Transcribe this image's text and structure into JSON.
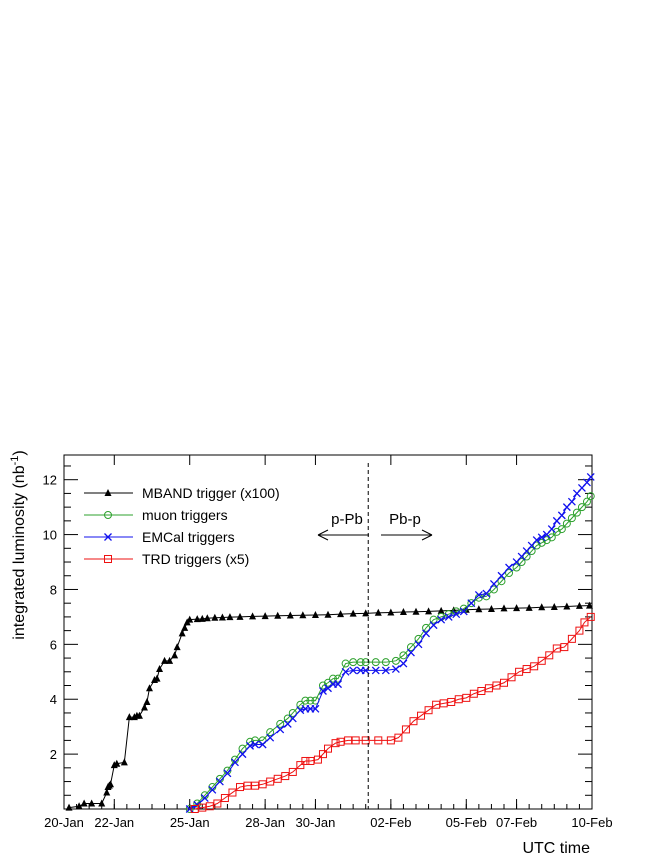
{
  "chart_data": {
    "type": "line",
    "xlabel": "UTC time",
    "ylabel_main": "integrated luminosity (nb",
    "ylabel_sup": "-1",
    "ylabel_close": ")",
    "xlim": [
      0,
      21
    ],
    "ylim": [
      0,
      12.9
    ],
    "x_ticks": [
      {
        "label": "20-Jan",
        "x": 0
      },
      {
        "label": "22-Jan",
        "x": 2
      },
      {
        "label": "25-Jan",
        "x": 5
      },
      {
        "label": "28-Jan",
        "x": 8
      },
      {
        "label": "30-Jan",
        "x": 10
      },
      {
        "label": "02-Feb",
        "x": 13
      },
      {
        "label": "05-Feb",
        "x": 16
      },
      {
        "label": "07-Feb",
        "x": 18
      },
      {
        "label": "10-Feb",
        "x": 21
      }
    ],
    "y_ticks": [
      2,
      4,
      6,
      8,
      10,
      12
    ],
    "grid": false,
    "legend_position": "top-left",
    "annotations": {
      "left_label": "p-Pb",
      "right_label": "Pb-p",
      "divider_x": 12.1
    },
    "series": [
      {
        "name": "MBAND trigger (x100)",
        "color": "#000000",
        "marker": "triangle",
        "x": [
          0.2,
          0.6,
          0.8,
          1.1,
          1.5,
          1.7,
          1.75,
          1.8,
          1.85,
          2.0,
          2.1,
          2.4,
          2.6,
          2.8,
          2.9,
          3.0,
          3.2,
          3.3,
          3.4,
          3.6,
          3.7,
          3.8,
          4.0,
          4.2,
          4.4,
          4.5,
          4.7,
          4.8,
          4.9,
          5.0,
          5.3,
          5.5,
          5.7,
          6.0,
          6.3,
          6.6,
          7.0,
          7.5,
          8.0,
          8.5,
          9.0,
          9.5,
          10.0,
          10.5,
          11.0,
          11.5,
          12.0,
          12.5,
          13.0,
          13.5,
          14.0,
          14.5,
          15.0,
          15.5,
          16.0,
          16.5,
          17.0,
          17.5,
          18.0,
          18.5,
          19.0,
          19.5,
          20.0,
          20.5,
          20.9
        ],
        "y": [
          0.05,
          0.1,
          0.2,
          0.2,
          0.2,
          0.6,
          0.8,
          0.85,
          0.9,
          1.6,
          1.65,
          1.7,
          3.35,
          3.35,
          3.4,
          3.4,
          3.7,
          3.9,
          4.4,
          4.7,
          4.75,
          5.1,
          5.4,
          5.4,
          5.6,
          5.9,
          6.4,
          6.6,
          6.8,
          6.9,
          6.92,
          6.93,
          6.95,
          6.97,
          6.98,
          6.99,
          7.0,
          7.02,
          7.03,
          7.04,
          7.05,
          7.06,
          7.07,
          7.08,
          7.1,
          7.12,
          7.13,
          7.15,
          7.16,
          7.18,
          7.19,
          7.2,
          7.22,
          7.24,
          7.26,
          7.28,
          7.29,
          7.31,
          7.32,
          7.33,
          7.35,
          7.36,
          7.38,
          7.4,
          7.41
        ]
      },
      {
        "name": "muon triggers",
        "color": "#2ca02c",
        "marker": "circle",
        "x": [
          5.0,
          5.3,
          5.6,
          5.9,
          6.2,
          6.5,
          6.8,
          7.1,
          7.4,
          7.6,
          7.9,
          8.2,
          8.6,
          8.9,
          9.1,
          9.4,
          9.6,
          9.8,
          10.0,
          10.3,
          10.5,
          10.7,
          10.9,
          11.2,
          11.5,
          11.8,
          12.0,
          12.4,
          12.8,
          13.2,
          13.5,
          13.8,
          14.1,
          14.4,
          14.7,
          15.0,
          15.3,
          15.6,
          15.9,
          16.2,
          16.5,
          16.8,
          17.1,
          17.4,
          17.7,
          18.0,
          18.2,
          18.4,
          18.6,
          18.8,
          19.0,
          19.2,
          19.4,
          19.6,
          19.8,
          20.0,
          20.2,
          20.4,
          20.6,
          20.8,
          20.95
        ],
        "y": [
          0.0,
          0.2,
          0.5,
          0.8,
          1.1,
          1.4,
          1.8,
          2.2,
          2.45,
          2.5,
          2.5,
          2.8,
          3.1,
          3.3,
          3.5,
          3.8,
          3.95,
          3.95,
          3.95,
          4.5,
          4.6,
          4.75,
          4.75,
          5.3,
          5.35,
          5.35,
          5.35,
          5.35,
          5.35,
          5.4,
          5.6,
          5.9,
          6.2,
          6.6,
          6.9,
          7.0,
          7.1,
          7.2,
          7.3,
          7.5,
          7.7,
          7.75,
          8.0,
          8.3,
          8.6,
          8.8,
          9.0,
          9.2,
          9.4,
          9.6,
          9.7,
          9.8,
          9.9,
          10.1,
          10.2,
          10.4,
          10.6,
          10.8,
          11.0,
          11.2,
          11.4
        ]
      },
      {
        "name": "EMCal triggers",
        "color": "#1010ee",
        "marker": "cross",
        "x": [
          5.0,
          5.3,
          5.6,
          5.9,
          6.2,
          6.5,
          6.8,
          7.1,
          7.4,
          7.6,
          7.9,
          8.2,
          8.6,
          8.9,
          9.1,
          9.4,
          9.6,
          9.8,
          10.0,
          10.3,
          10.5,
          10.7,
          10.9,
          11.2,
          11.5,
          11.8,
          12.0,
          12.4,
          12.8,
          13.2,
          13.5,
          13.8,
          14.1,
          14.4,
          14.7,
          15.0,
          15.3,
          15.6,
          15.9,
          16.2,
          16.5,
          16.8,
          17.1,
          17.4,
          17.7,
          18.0,
          18.2,
          18.4,
          18.6,
          18.8,
          19.0,
          19.2,
          19.4,
          19.6,
          19.8,
          20.0,
          20.2,
          20.4,
          20.6,
          20.8,
          20.95
        ],
        "y": [
          0.0,
          0.15,
          0.4,
          0.7,
          1.0,
          1.3,
          1.7,
          2.0,
          2.3,
          2.35,
          2.35,
          2.6,
          2.9,
          3.1,
          3.3,
          3.6,
          3.65,
          3.65,
          3.65,
          4.3,
          4.4,
          4.55,
          4.55,
          5.0,
          5.05,
          5.05,
          5.05,
          5.05,
          5.05,
          5.1,
          5.3,
          5.7,
          6.0,
          6.4,
          6.7,
          6.9,
          7.0,
          7.1,
          7.2,
          7.5,
          7.8,
          7.85,
          8.2,
          8.5,
          8.8,
          9.0,
          9.2,
          9.4,
          9.6,
          9.8,
          9.9,
          10.0,
          10.2,
          10.5,
          10.7,
          11.0,
          11.2,
          11.5,
          11.7,
          11.9,
          12.1
        ]
      },
      {
        "name": "TRD triggers (x5)",
        "color": "#ee1111",
        "marker": "square",
        "x": [
          5.2,
          5.5,
          5.8,
          6.1,
          6.4,
          6.7,
          7.0,
          7.3,
          7.6,
          7.9,
          8.2,
          8.5,
          8.8,
          9.1,
          9.4,
          9.6,
          9.8,
          10.1,
          10.3,
          10.5,
          10.8,
          11.0,
          11.3,
          11.6,
          12.0,
          12.5,
          13.0,
          13.3,
          13.6,
          13.9,
          14.2,
          14.5,
          14.8,
          15.1,
          15.4,
          15.7,
          16.0,
          16.3,
          16.6,
          16.9,
          17.2,
          17.5,
          17.8,
          18.1,
          18.4,
          18.7,
          19.0,
          19.3,
          19.6,
          19.9,
          20.2,
          20.5,
          20.7,
          20.95
        ],
        "y": [
          0.0,
          0.05,
          0.1,
          0.2,
          0.4,
          0.6,
          0.8,
          0.85,
          0.85,
          0.9,
          1.0,
          1.1,
          1.2,
          1.35,
          1.6,
          1.75,
          1.75,
          1.8,
          2.0,
          2.2,
          2.4,
          2.45,
          2.5,
          2.5,
          2.5,
          2.5,
          2.5,
          2.6,
          2.9,
          3.2,
          3.4,
          3.6,
          3.8,
          3.85,
          3.9,
          4.0,
          4.05,
          4.2,
          4.3,
          4.4,
          4.5,
          4.6,
          4.8,
          5.0,
          5.1,
          5.2,
          5.4,
          5.6,
          5.85,
          5.9,
          6.2,
          6.5,
          6.8,
          7.0
        ]
      }
    ]
  }
}
